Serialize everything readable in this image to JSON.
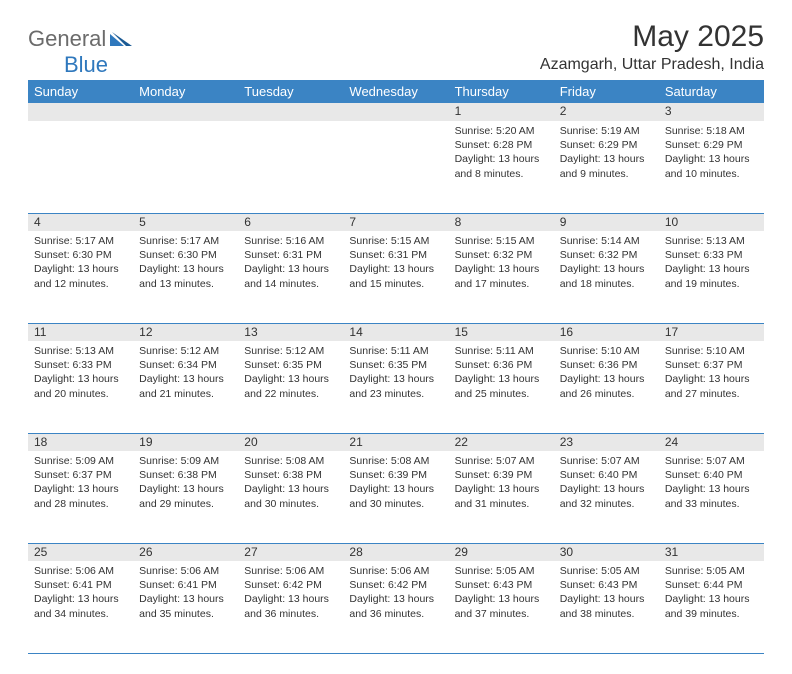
{
  "brand": {
    "part1": "General",
    "part2": "Blue"
  },
  "title": "May 2025",
  "location": "Azamgarh, Uttar Pradesh, India",
  "colors": {
    "header_bg": "#3b84c4",
    "header_text": "#ffffff",
    "daynum_bg": "#e8e8e8",
    "row_border": "#3b84c4",
    "logo_gray": "#6b6b6b",
    "logo_blue": "#2f78bd",
    "page_bg": "#ffffff",
    "text": "#333333"
  },
  "weekdays": [
    "Sunday",
    "Monday",
    "Tuesday",
    "Wednesday",
    "Thursday",
    "Friday",
    "Saturday"
  ],
  "weeks": [
    [
      null,
      null,
      null,
      null,
      {
        "n": "1",
        "sr": "5:20 AM",
        "ss": "6:28 PM",
        "dlA": "Daylight: 13 hours",
        "dlB": "and 8 minutes."
      },
      {
        "n": "2",
        "sr": "5:19 AM",
        "ss": "6:29 PM",
        "dlA": "Daylight: 13 hours",
        "dlB": "and 9 minutes."
      },
      {
        "n": "3",
        "sr": "5:18 AM",
        "ss": "6:29 PM",
        "dlA": "Daylight: 13 hours",
        "dlB": "and 10 minutes."
      }
    ],
    [
      {
        "n": "4",
        "sr": "5:17 AM",
        "ss": "6:30 PM",
        "dlA": "Daylight: 13 hours",
        "dlB": "and 12 minutes."
      },
      {
        "n": "5",
        "sr": "5:17 AM",
        "ss": "6:30 PM",
        "dlA": "Daylight: 13 hours",
        "dlB": "and 13 minutes."
      },
      {
        "n": "6",
        "sr": "5:16 AM",
        "ss": "6:31 PM",
        "dlA": "Daylight: 13 hours",
        "dlB": "and 14 minutes."
      },
      {
        "n": "7",
        "sr": "5:15 AM",
        "ss": "6:31 PM",
        "dlA": "Daylight: 13 hours",
        "dlB": "and 15 minutes."
      },
      {
        "n": "8",
        "sr": "5:15 AM",
        "ss": "6:32 PM",
        "dlA": "Daylight: 13 hours",
        "dlB": "and 17 minutes."
      },
      {
        "n": "9",
        "sr": "5:14 AM",
        "ss": "6:32 PM",
        "dlA": "Daylight: 13 hours",
        "dlB": "and 18 minutes."
      },
      {
        "n": "10",
        "sr": "5:13 AM",
        "ss": "6:33 PM",
        "dlA": "Daylight: 13 hours",
        "dlB": "and 19 minutes."
      }
    ],
    [
      {
        "n": "11",
        "sr": "5:13 AM",
        "ss": "6:33 PM",
        "dlA": "Daylight: 13 hours",
        "dlB": "and 20 minutes."
      },
      {
        "n": "12",
        "sr": "5:12 AM",
        "ss": "6:34 PM",
        "dlA": "Daylight: 13 hours",
        "dlB": "and 21 minutes."
      },
      {
        "n": "13",
        "sr": "5:12 AM",
        "ss": "6:35 PM",
        "dlA": "Daylight: 13 hours",
        "dlB": "and 22 minutes."
      },
      {
        "n": "14",
        "sr": "5:11 AM",
        "ss": "6:35 PM",
        "dlA": "Daylight: 13 hours",
        "dlB": "and 23 minutes."
      },
      {
        "n": "15",
        "sr": "5:11 AM",
        "ss": "6:36 PM",
        "dlA": "Daylight: 13 hours",
        "dlB": "and 25 minutes."
      },
      {
        "n": "16",
        "sr": "5:10 AM",
        "ss": "6:36 PM",
        "dlA": "Daylight: 13 hours",
        "dlB": "and 26 minutes."
      },
      {
        "n": "17",
        "sr": "5:10 AM",
        "ss": "6:37 PM",
        "dlA": "Daylight: 13 hours",
        "dlB": "and 27 minutes."
      }
    ],
    [
      {
        "n": "18",
        "sr": "5:09 AM",
        "ss": "6:37 PM",
        "dlA": "Daylight: 13 hours",
        "dlB": "and 28 minutes."
      },
      {
        "n": "19",
        "sr": "5:09 AM",
        "ss": "6:38 PM",
        "dlA": "Daylight: 13 hours",
        "dlB": "and 29 minutes."
      },
      {
        "n": "20",
        "sr": "5:08 AM",
        "ss": "6:38 PM",
        "dlA": "Daylight: 13 hours",
        "dlB": "and 30 minutes."
      },
      {
        "n": "21",
        "sr": "5:08 AM",
        "ss": "6:39 PM",
        "dlA": "Daylight: 13 hours",
        "dlB": "and 30 minutes."
      },
      {
        "n": "22",
        "sr": "5:07 AM",
        "ss": "6:39 PM",
        "dlA": "Daylight: 13 hours",
        "dlB": "and 31 minutes."
      },
      {
        "n": "23",
        "sr": "5:07 AM",
        "ss": "6:40 PM",
        "dlA": "Daylight: 13 hours",
        "dlB": "and 32 minutes."
      },
      {
        "n": "24",
        "sr": "5:07 AM",
        "ss": "6:40 PM",
        "dlA": "Daylight: 13 hours",
        "dlB": "and 33 minutes."
      }
    ],
    [
      {
        "n": "25",
        "sr": "5:06 AM",
        "ss": "6:41 PM",
        "dlA": "Daylight: 13 hours",
        "dlB": "and 34 minutes."
      },
      {
        "n": "26",
        "sr": "5:06 AM",
        "ss": "6:41 PM",
        "dlA": "Daylight: 13 hours",
        "dlB": "and 35 minutes."
      },
      {
        "n": "27",
        "sr": "5:06 AM",
        "ss": "6:42 PM",
        "dlA": "Daylight: 13 hours",
        "dlB": "and 36 minutes."
      },
      {
        "n": "28",
        "sr": "5:06 AM",
        "ss": "6:42 PM",
        "dlA": "Daylight: 13 hours",
        "dlB": "and 36 minutes."
      },
      {
        "n": "29",
        "sr": "5:05 AM",
        "ss": "6:43 PM",
        "dlA": "Daylight: 13 hours",
        "dlB": "and 37 minutes."
      },
      {
        "n": "30",
        "sr": "5:05 AM",
        "ss": "6:43 PM",
        "dlA": "Daylight: 13 hours",
        "dlB": "and 38 minutes."
      },
      {
        "n": "31",
        "sr": "5:05 AM",
        "ss": "6:44 PM",
        "dlA": "Daylight: 13 hours",
        "dlB": "and 39 minutes."
      }
    ]
  ]
}
